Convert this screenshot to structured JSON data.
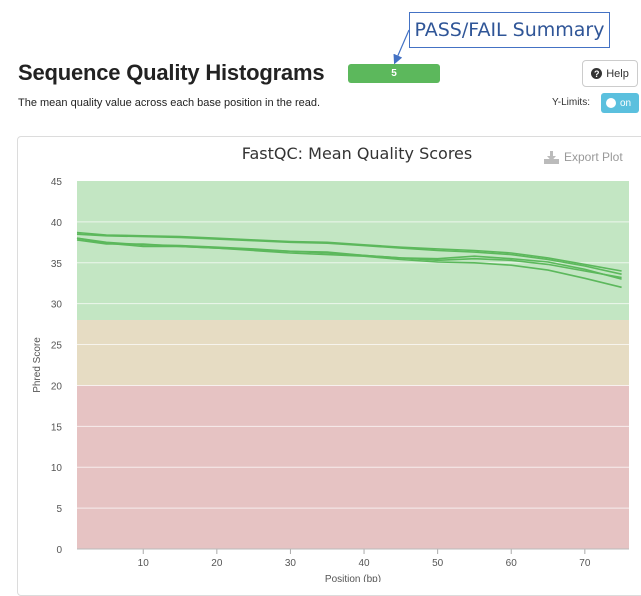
{
  "annotation": {
    "label": "PASS/FAIL Summary"
  },
  "header": {
    "title": "Sequence Quality Histograms",
    "status_count": "5",
    "help_label": "Help",
    "description": "The mean quality value across each base position in the read.",
    "ylimits_label": "Y-Limits:",
    "toggle_label": "on"
  },
  "export_label": "Export Plot",
  "chart_data": {
    "type": "line",
    "title": "FastQC: Mean Quality Scores",
    "xlabel": "Position (bp)",
    "ylabel": "Phred Score",
    "xlim": [
      1,
      76
    ],
    "ylim": [
      0,
      45
    ],
    "x_ticks": [
      10,
      20,
      30,
      40,
      50,
      60,
      70
    ],
    "y_ticks": [
      0,
      5,
      10,
      15,
      20,
      25,
      30,
      35,
      40,
      45
    ],
    "bands": [
      {
        "from": 28,
        "to": 45,
        "color": "#c3e6c3"
      },
      {
        "from": 20,
        "to": 28,
        "color": "#e6dcc3"
      },
      {
        "from": 0,
        "to": 20,
        "color": "#e6c3c3"
      }
    ],
    "line_color": "#5cb85c",
    "x": [
      1,
      5,
      10,
      15,
      20,
      25,
      30,
      35,
      40,
      45,
      50,
      55,
      60,
      65,
      70,
      75
    ],
    "series": [
      {
        "values": [
          38.7,
          38.4,
          38.3,
          38.2,
          38.0,
          37.8,
          37.6,
          37.5,
          37.2,
          36.9,
          36.7,
          36.5,
          36.2,
          35.6,
          34.8,
          34.0
        ]
      },
      {
        "values": [
          38.5,
          38.3,
          38.2,
          38.1,
          37.9,
          37.7,
          37.5,
          37.4,
          37.1,
          36.8,
          36.5,
          36.3,
          36.0,
          35.4,
          34.6,
          33.6
        ]
      },
      {
        "values": [
          38.0,
          37.5,
          37.2,
          37.1,
          36.9,
          36.7,
          36.4,
          36.2,
          35.9,
          35.6,
          35.3,
          35.5,
          35.3,
          34.8,
          34.0,
          33.2
        ]
      },
      {
        "values": [
          37.8,
          37.3,
          37.3,
          37.0,
          36.8,
          36.5,
          36.2,
          36.0,
          35.8,
          35.4,
          35.1,
          35.0,
          34.7,
          34.1,
          33.1,
          32.0
        ]
      },
      {
        "values": [
          38.0,
          37.4,
          37.0,
          37.0,
          36.8,
          36.6,
          36.4,
          36.3,
          35.9,
          35.6,
          35.5,
          35.8,
          35.5,
          35.1,
          34.2,
          33.0
        ]
      }
    ]
  }
}
